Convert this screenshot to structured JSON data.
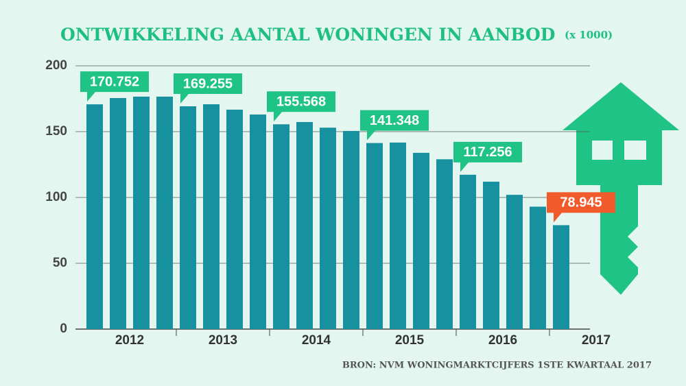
{
  "chart_data": {
    "type": "bar",
    "title": "ONTWIKKELING AANTAL WONINGEN IN AANBOD",
    "subtitle": "(x 1000)",
    "source": "BRON: NVM WONINGMARKTCIJFERS 1STE KWARTAAL 2017",
    "groups": [
      "2012",
      "2013",
      "2014",
      "2015",
      "2016",
      "2017"
    ],
    "values": [
      170.752,
      175.5,
      176.6,
      176.6,
      169.255,
      170.8,
      166.7,
      163,
      155.568,
      157.3,
      153,
      150.5,
      141.348,
      141.7,
      133.9,
      129,
      117.256,
      112,
      102,
      93,
      78.945
    ],
    "value_labels": [
      "170.752",
      null,
      null,
      null,
      "169.255",
      null,
      null,
      null,
      "155.568",
      null,
      null,
      null,
      "141.348",
      null,
      null,
      null,
      "117.256",
      null,
      null,
      null,
      "78.945"
    ],
    "color": "#17909f",
    "label_color": "#1ec385",
    "highlight_label_color": "#f15a2b",
    "highlight_index": 20,
    "ylim": [
      0,
      200
    ],
    "yticks": [
      0,
      50,
      100,
      150,
      200
    ],
    "grid": true
  }
}
